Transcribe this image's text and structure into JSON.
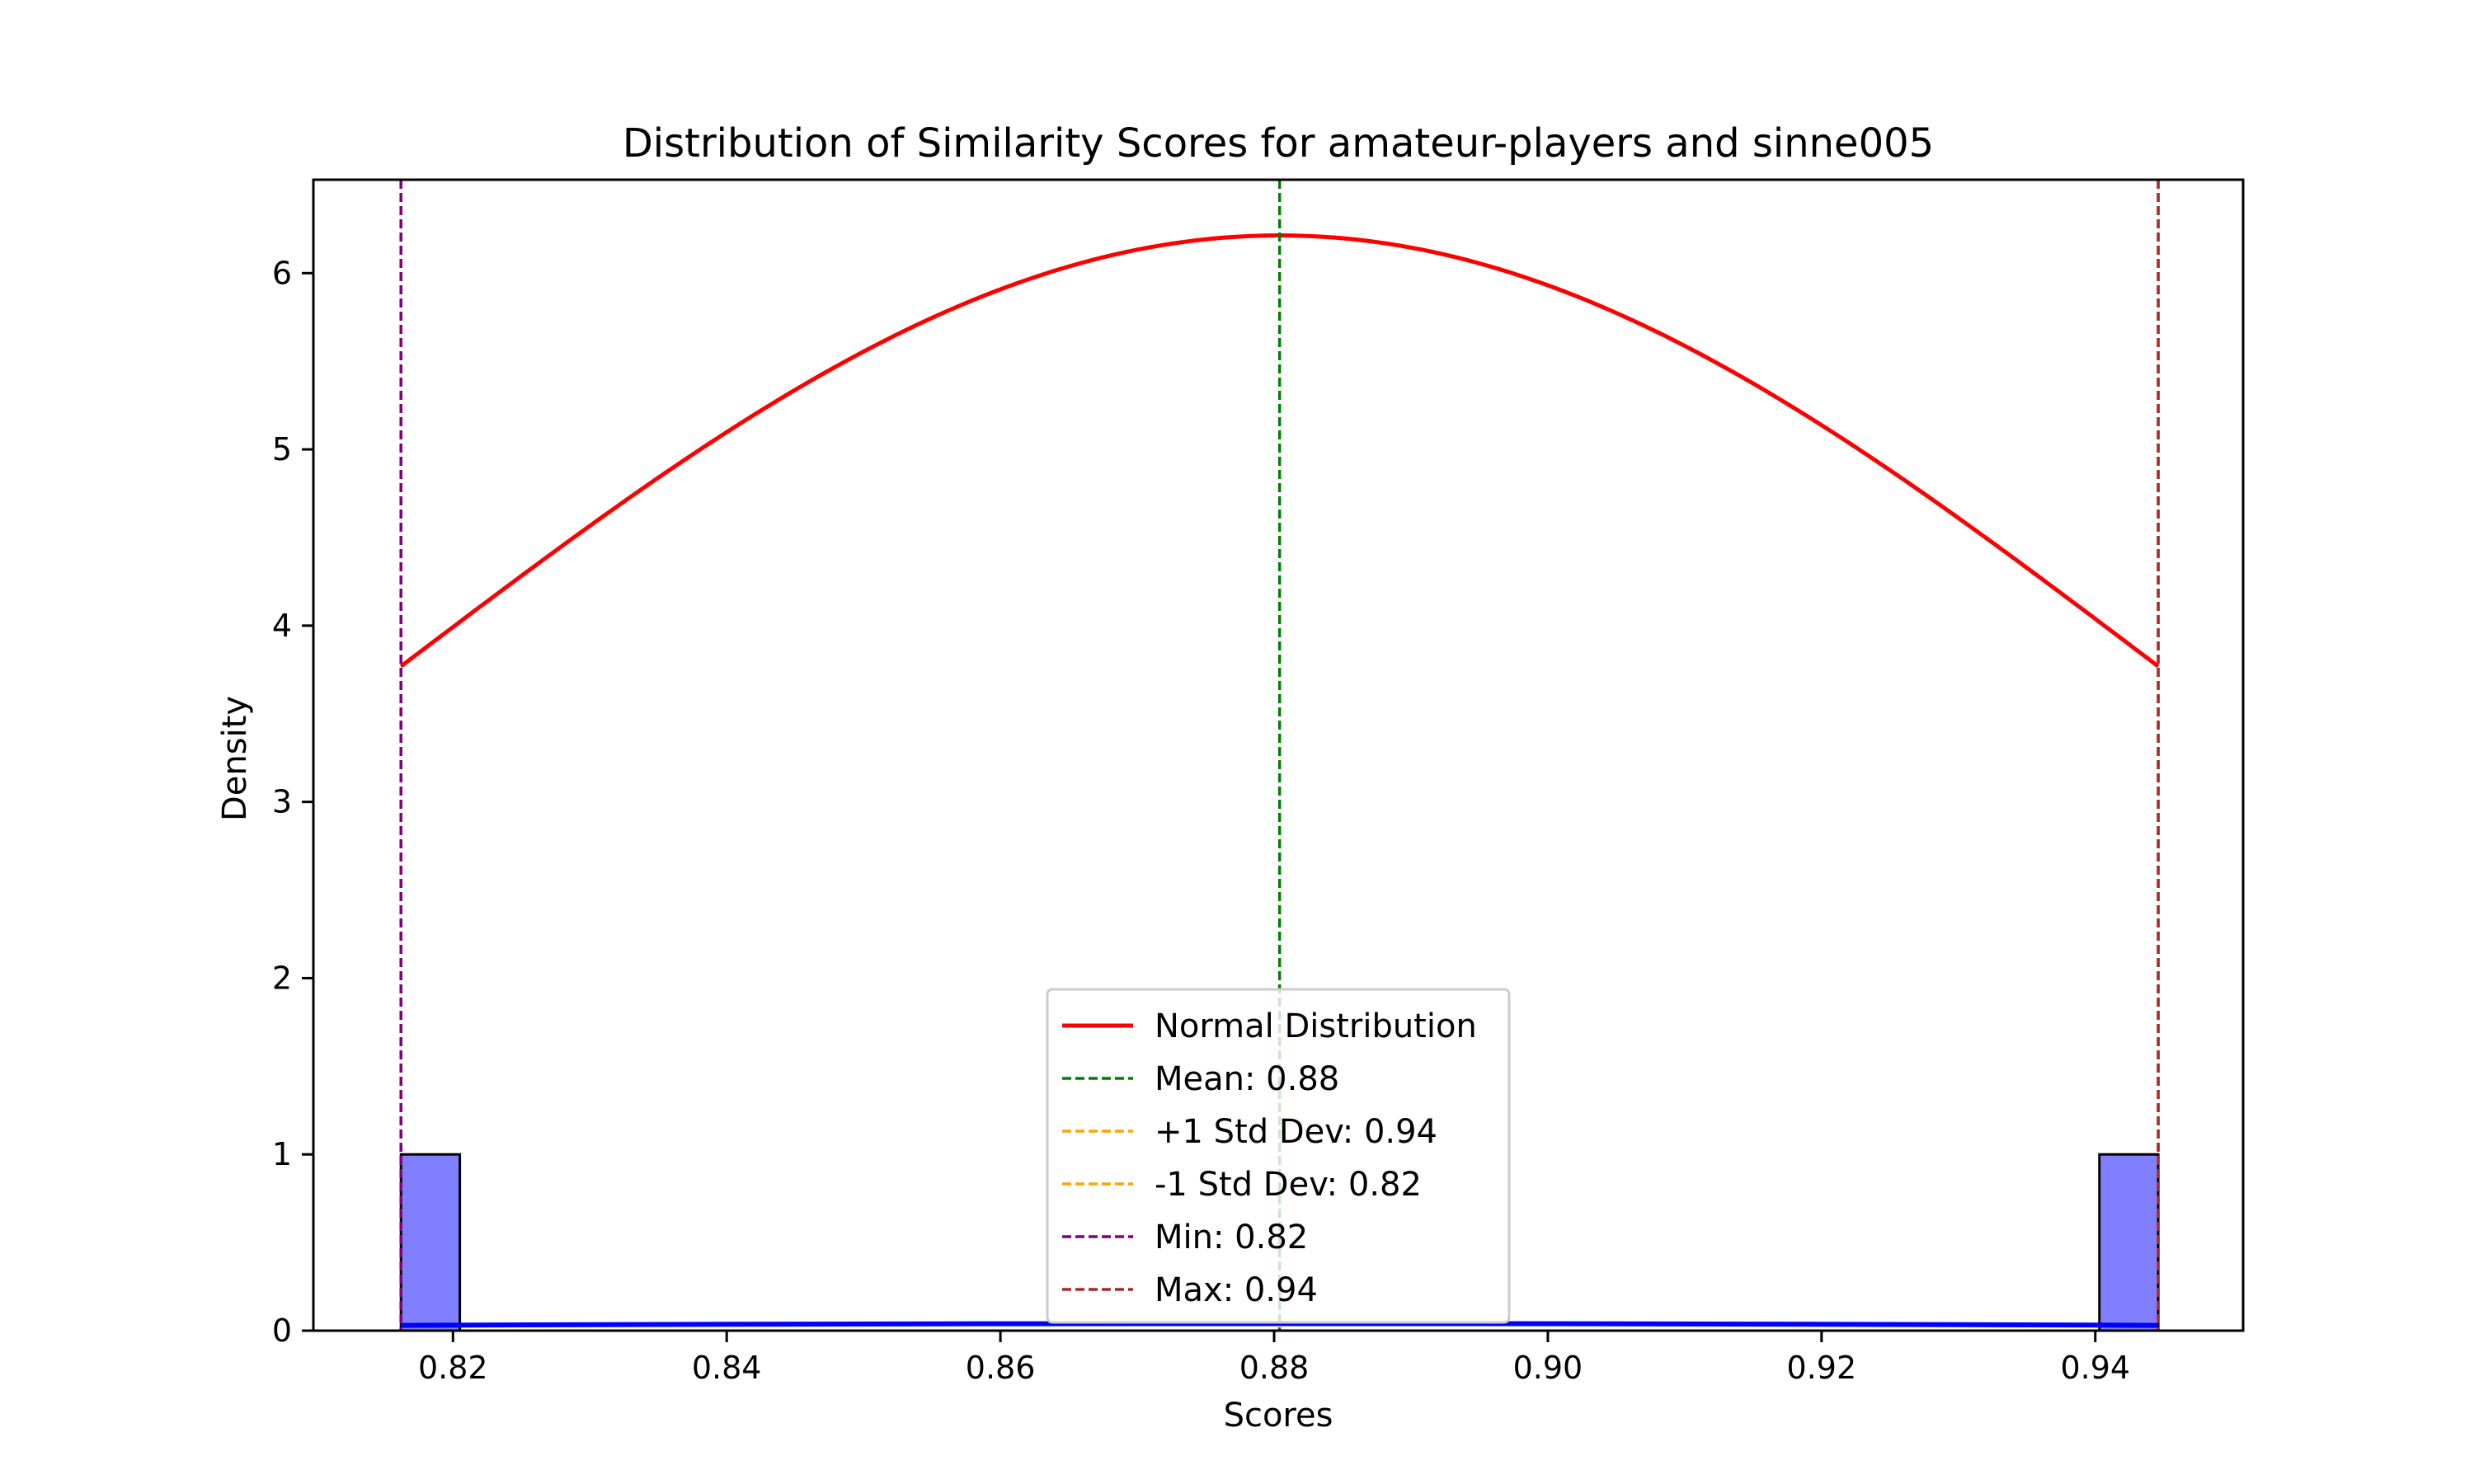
{
  "chart_data": {
    "type": "bar",
    "title": "Distribution of Similarity Scores for amateur-players and sinne005",
    "xlabel": "Scores",
    "ylabel": "Density",
    "xlim": [
      0.8098,
      0.9508
    ],
    "ylim": [
      0,
      6.53
    ],
    "x_ticks": [
      0.82,
      0.84,
      0.86,
      0.88,
      0.9,
      0.92,
      0.94
    ],
    "x_tick_labels": [
      "0.82",
      "0.84",
      "0.86",
      "0.88",
      "0.90",
      "0.92",
      "0.94"
    ],
    "y_ticks": [
      0,
      1,
      2,
      3,
      4,
      5,
      6
    ],
    "y_tick_labels": [
      "0",
      "1",
      "2",
      "3",
      "4",
      "5",
      "6"
    ],
    "grid": false,
    "legend_position": "lower-center",
    "histogram": {
      "color": "#8080ff",
      "edge_color": "#000000",
      "bins": [
        {
          "x0": 0.8162,
          "x1": 0.8205,
          "density": 1.0
        },
        {
          "x0": 0.9403,
          "x1": 0.9446,
          "density": 1.0
        }
      ]
    },
    "kde_line": {
      "color": "#0000ff",
      "x": [
        0.8162,
        0.8304,
        0.8446,
        0.8588,
        0.873,
        0.8804,
        0.888,
        0.902,
        0.9162,
        0.9304,
        0.9446
      ],
      "y": [
        0.03,
        0.034,
        0.037,
        0.039,
        0.04,
        0.04,
        0.04,
        0.039,
        0.037,
        0.034,
        0.03
      ]
    },
    "normal_curve": {
      "color": "#ff0000",
      "mean": 0.8804,
      "std": 0.0642,
      "x_range": [
        0.8162,
        0.9446
      ]
    },
    "series": [
      {
        "name": "Normal Distribution",
        "color": "#ff0000",
        "style": "solid"
      },
      {
        "name": "Mean: 0.88",
        "color": "#008000",
        "style": "dashed",
        "x": 0.8804
      },
      {
        "name": "+1 Std Dev: 0.94",
        "color": "#ffa500",
        "style": "dashed",
        "x": 0.9446
      },
      {
        "name": "-1 Std Dev: 0.82",
        "color": "#ffa500",
        "style": "dashed",
        "x": 0.8162
      },
      {
        "name": "Min: 0.82",
        "color": "#800080",
        "style": "dashed",
        "x": 0.8162
      },
      {
        "name": "Max: 0.94",
        "color": "#a52a2a",
        "style": "dashed",
        "x": 0.9446
      }
    ]
  }
}
